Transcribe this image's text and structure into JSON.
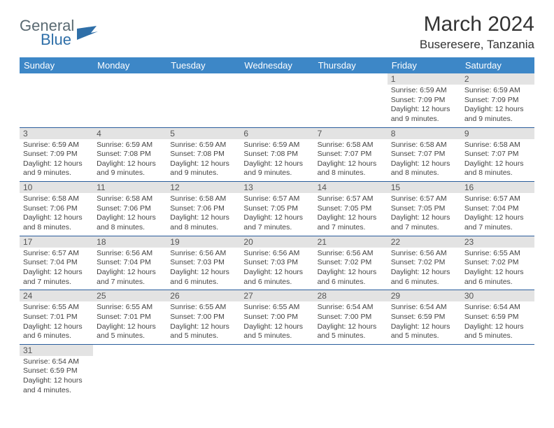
{
  "logo": {
    "text1": "General",
    "text2": "Blue",
    "flag_color": "#2f6fa8"
  },
  "title": "March 2024",
  "location": "Buseresere, Tanzania",
  "header_bg": "#3d87c7",
  "daynum_bg": "#e3e3e3",
  "row_border": "#2a5d9c",
  "weekdays": [
    "Sunday",
    "Monday",
    "Tuesday",
    "Wednesday",
    "Thursday",
    "Friday",
    "Saturday"
  ],
  "weeks": [
    [
      null,
      null,
      null,
      null,
      null,
      {
        "n": "1",
        "sr": "6:59 AM",
        "ss": "7:09 PM",
        "dl": "12 hours and 9 minutes."
      },
      {
        "n": "2",
        "sr": "6:59 AM",
        "ss": "7:09 PM",
        "dl": "12 hours and 9 minutes."
      }
    ],
    [
      {
        "n": "3",
        "sr": "6:59 AM",
        "ss": "7:09 PM",
        "dl": "12 hours and 9 minutes."
      },
      {
        "n": "4",
        "sr": "6:59 AM",
        "ss": "7:08 PM",
        "dl": "12 hours and 9 minutes."
      },
      {
        "n": "5",
        "sr": "6:59 AM",
        "ss": "7:08 PM",
        "dl": "12 hours and 9 minutes."
      },
      {
        "n": "6",
        "sr": "6:59 AM",
        "ss": "7:08 PM",
        "dl": "12 hours and 9 minutes."
      },
      {
        "n": "7",
        "sr": "6:58 AM",
        "ss": "7:07 PM",
        "dl": "12 hours and 8 minutes."
      },
      {
        "n": "8",
        "sr": "6:58 AM",
        "ss": "7:07 PM",
        "dl": "12 hours and 8 minutes."
      },
      {
        "n": "9",
        "sr": "6:58 AM",
        "ss": "7:07 PM",
        "dl": "12 hours and 8 minutes."
      }
    ],
    [
      {
        "n": "10",
        "sr": "6:58 AM",
        "ss": "7:06 PM",
        "dl": "12 hours and 8 minutes."
      },
      {
        "n": "11",
        "sr": "6:58 AM",
        "ss": "7:06 PM",
        "dl": "12 hours and 8 minutes."
      },
      {
        "n": "12",
        "sr": "6:58 AM",
        "ss": "7:06 PM",
        "dl": "12 hours and 8 minutes."
      },
      {
        "n": "13",
        "sr": "6:57 AM",
        "ss": "7:05 PM",
        "dl": "12 hours and 7 minutes."
      },
      {
        "n": "14",
        "sr": "6:57 AM",
        "ss": "7:05 PM",
        "dl": "12 hours and 7 minutes."
      },
      {
        "n": "15",
        "sr": "6:57 AM",
        "ss": "7:05 PM",
        "dl": "12 hours and 7 minutes."
      },
      {
        "n": "16",
        "sr": "6:57 AM",
        "ss": "7:04 PM",
        "dl": "12 hours and 7 minutes."
      }
    ],
    [
      {
        "n": "17",
        "sr": "6:57 AM",
        "ss": "7:04 PM",
        "dl": "12 hours and 7 minutes."
      },
      {
        "n": "18",
        "sr": "6:56 AM",
        "ss": "7:04 PM",
        "dl": "12 hours and 7 minutes."
      },
      {
        "n": "19",
        "sr": "6:56 AM",
        "ss": "7:03 PM",
        "dl": "12 hours and 6 minutes."
      },
      {
        "n": "20",
        "sr": "6:56 AM",
        "ss": "7:03 PM",
        "dl": "12 hours and 6 minutes."
      },
      {
        "n": "21",
        "sr": "6:56 AM",
        "ss": "7:02 PM",
        "dl": "12 hours and 6 minutes."
      },
      {
        "n": "22",
        "sr": "6:56 AM",
        "ss": "7:02 PM",
        "dl": "12 hours and 6 minutes."
      },
      {
        "n": "23",
        "sr": "6:55 AM",
        "ss": "7:02 PM",
        "dl": "12 hours and 6 minutes."
      }
    ],
    [
      {
        "n": "24",
        "sr": "6:55 AM",
        "ss": "7:01 PM",
        "dl": "12 hours and 6 minutes."
      },
      {
        "n": "25",
        "sr": "6:55 AM",
        "ss": "7:01 PM",
        "dl": "12 hours and 5 minutes."
      },
      {
        "n": "26",
        "sr": "6:55 AM",
        "ss": "7:00 PM",
        "dl": "12 hours and 5 minutes."
      },
      {
        "n": "27",
        "sr": "6:55 AM",
        "ss": "7:00 PM",
        "dl": "12 hours and 5 minutes."
      },
      {
        "n": "28",
        "sr": "6:54 AM",
        "ss": "7:00 PM",
        "dl": "12 hours and 5 minutes."
      },
      {
        "n": "29",
        "sr": "6:54 AM",
        "ss": "6:59 PM",
        "dl": "12 hours and 5 minutes."
      },
      {
        "n": "30",
        "sr": "6:54 AM",
        "ss": "6:59 PM",
        "dl": "12 hours and 5 minutes."
      }
    ],
    [
      {
        "n": "31",
        "sr": "6:54 AM",
        "ss": "6:59 PM",
        "dl": "12 hours and 4 minutes."
      },
      null,
      null,
      null,
      null,
      null,
      null
    ]
  ],
  "labels": {
    "sunrise": "Sunrise:",
    "sunset": "Sunset:",
    "daylight": "Daylight:"
  }
}
